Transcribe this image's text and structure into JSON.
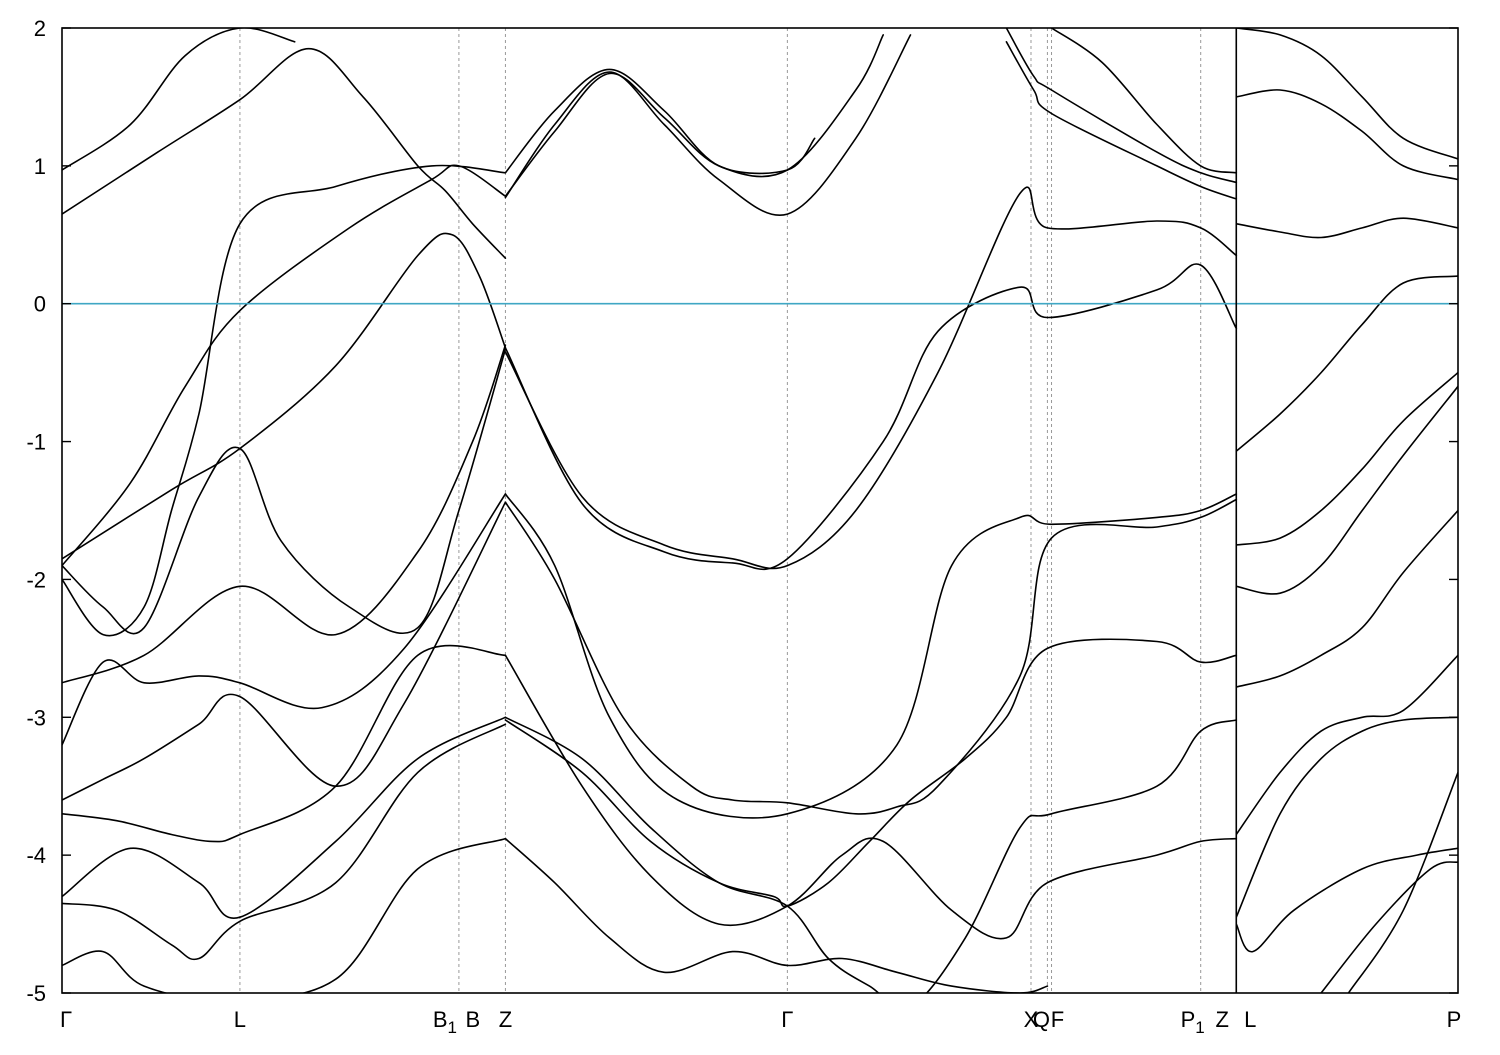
{
  "chart_data": {
    "type": "line",
    "title": "",
    "xlabel": "",
    "ylabel": "",
    "ylim": [
      -5,
      2
    ],
    "yticks": [
      -5,
      -4,
      -3,
      -2,
      -1,
      0,
      1,
      2
    ],
    "grid": "vertical dashed lines at high-symmetry points",
    "legend": "none",
    "colors": {
      "bands": "#000000",
      "fermi_level": "#3fa7c4",
      "symmetry_lines": "#999999"
    },
    "path_end": 10.2,
    "segment_break_at": 8.58,
    "fermi_level": 0,
    "high_symmetry_points": [
      {
        "label": "Γ",
        "sub": "",
        "k": 0
      },
      {
        "label": "L",
        "sub": "",
        "k": 1.3
      },
      {
        "label": "B",
        "sub": "1",
        "k": 2.9
      },
      {
        "label": "B",
        "sub": "",
        "k": 2.9
      },
      {
        "label": "Z",
        "sub": "",
        "k": 3.24
      },
      {
        "label": "Γ",
        "sub": "",
        "k": 5.3
      },
      {
        "label": "X",
        "sub": "",
        "k": 7.08
      },
      {
        "label": "Q",
        "sub": "",
        "k": 7.2
      },
      {
        "label": "F",
        "sub": "",
        "k": 7.23
      },
      {
        "label": "P",
        "sub": "1",
        "k": 8.32
      },
      {
        "label": "Z",
        "sub": "",
        "k": 8.58
      },
      {
        "label": "L",
        "sub": "",
        "k": 8.58
      },
      {
        "label": "P",
        "sub": "",
        "k": 10.2
      }
    ],
    "series": [
      {
        "x": [
          0,
          0.8,
          1.3,
          2.0,
          2.6,
          2.85,
          3.05,
          3.24
        ],
        "y": [
          -1.85,
          -1.35,
          -1.05,
          -0.45,
          0.35,
          0.5,
          0.2,
          -0.32
        ]
      },
      {
        "x": [
          0,
          0.5,
          0.9,
          1.3,
          2.1,
          2.7,
          2.9,
          3.24
        ],
        "y": [
          -1.9,
          -1.3,
          -0.6,
          -0.05,
          0.55,
          0.9,
          1.0,
          0.78
        ]
      },
      {
        "x": [
          0,
          0.3,
          0.6,
          0.8,
          1.0,
          1.3,
          2.0,
          2.7,
          3.24
        ],
        "y": [
          -2.0,
          -2.4,
          -2.2,
          -1.5,
          -0.8,
          0.58,
          0.85,
          1.0,
          0.95
        ]
      },
      {
        "x": [
          0,
          0.7,
          1.3,
          1.8,
          2.2,
          2.6,
          2.8,
          3.0,
          3.24
        ],
        "y": [
          0.65,
          1.1,
          1.48,
          1.85,
          1.5,
          1.0,
          0.82,
          0.58,
          0.33
        ]
      },
      {
        "x": [
          0,
          0.5,
          0.9,
          1.3,
          1.7
        ],
        "y": [
          0.97,
          1.3,
          1.8,
          2.0,
          1.9
        ]
      },
      {
        "x": [
          0,
          0.3,
          0.6,
          1.0,
          1.3,
          1.6,
          2.1,
          2.6,
          2.9,
          3.24
        ],
        "y": [
          -1.9,
          -2.2,
          -2.35,
          -1.4,
          -1.05,
          -1.72,
          -2.2,
          -2.35,
          -1.5,
          -0.33
        ]
      },
      {
        "x": [
          0,
          0.6,
          1.3,
          2.0,
          2.6,
          3.0,
          3.24
        ],
        "y": [
          -2.75,
          -2.55,
          -2.05,
          -2.4,
          -1.8,
          -1.0,
          -0.3
        ]
      },
      {
        "x": [
          0,
          0.3,
          0.6,
          1.0,
          1.3,
          1.9,
          2.5,
          3.24
        ],
        "y": [
          -3.2,
          -2.6,
          -2.75,
          -2.7,
          -2.75,
          -2.93,
          -2.5,
          -1.38
        ]
      },
      {
        "x": [
          0,
          0.3,
          0.6,
          1.0,
          1.3,
          2.0,
          2.5,
          3.24
        ],
        "y": [
          -3.6,
          -3.45,
          -3.3,
          -3.05,
          -2.85,
          -3.5,
          -2.9,
          -1.44
        ]
      },
      {
        "x": [
          0,
          0.4,
          0.8,
          1.1,
          1.3,
          2.0,
          2.6,
          3.24
        ],
        "y": [
          -3.7,
          -3.75,
          -3.85,
          -3.9,
          -3.85,
          -3.5,
          -2.55,
          -2.55
        ]
      },
      {
        "x": [
          0,
          0.5,
          1.0,
          1.3,
          2.0,
          2.6,
          3.24
        ],
        "y": [
          -4.3,
          -3.95,
          -4.2,
          -4.45,
          -3.9,
          -3.3,
          -3.0
        ]
      },
      {
        "x": [
          0,
          0.4,
          0.8,
          1.0,
          1.3,
          2.0,
          2.6,
          3.24
        ],
        "y": [
          -4.35,
          -4.4,
          -4.65,
          -4.75,
          -4.48,
          -4.2,
          -3.4,
          -3.05
        ]
      },
      {
        "x": [
          0,
          0.3,
          0.6,
          1.2,
          2.0,
          2.6,
          3.24
        ],
        "y": [
          -4.8,
          -4.7,
          -4.95,
          -5.05,
          -4.9,
          -4.1,
          -3.88
        ]
      },
      {
        "x": [
          3.24,
          3.8,
          4.4,
          4.9,
          5.3,
          6.0,
          6.4,
          7.0,
          7.2,
          8.0,
          8.32,
          8.58
        ],
        "y": [
          -0.32,
          -1.45,
          -1.8,
          -1.88,
          -1.85,
          -1.0,
          -0.2,
          0.12,
          -0.1,
          0.1,
          0.28,
          -0.18
        ]
      },
      {
        "x": [
          3.24,
          3.8,
          4.4,
          4.9,
          5.3,
          5.8,
          6.4,
          7.0,
          7.2,
          8.0,
          8.32,
          8.58
        ],
        "y": [
          -0.35,
          -1.4,
          -1.75,
          -1.85,
          -1.9,
          -1.5,
          -0.5,
          0.8,
          0.55,
          0.6,
          0.55,
          0.35
        ]
      },
      {
        "x": [
          3.24,
          3.6,
          4.0,
          4.5,
          5.3,
          6.1,
          6.5,
          7.0,
          7.23,
          8.0,
          8.32,
          8.58
        ],
        "y": [
          -1.38,
          -1.9,
          -3.0,
          -3.6,
          -3.7,
          -3.2,
          -1.9,
          -1.55,
          -1.6,
          -1.55,
          -1.5,
          -1.38
        ]
      },
      {
        "x": [
          3.24,
          3.6,
          4.1,
          4.6,
          4.9,
          5.3,
          5.8,
          6.1,
          6.4,
          7.0,
          7.23,
          8.0,
          8.32,
          8.58
        ],
        "y": [
          -1.44,
          -2.0,
          -3.0,
          -3.5,
          -3.6,
          -3.62,
          -3.7,
          -3.65,
          -3.5,
          -2.7,
          -1.7,
          -1.62,
          -1.55,
          -1.42
        ]
      },
      {
        "x": [
          3.24,
          3.8,
          4.3,
          4.8,
          5.3,
          5.7,
          6.0,
          6.5,
          6.9,
          7.2,
          8.0,
          8.32,
          8.58
        ],
        "y": [
          -2.55,
          -3.5,
          -4.15,
          -4.5,
          -4.37,
          -4.0,
          -3.9,
          -4.4,
          -4.6,
          -4.2,
          -4.0,
          -3.9,
          -3.88
        ]
      },
      {
        "x": [
          3.24,
          3.8,
          4.3,
          4.8,
          5.3,
          5.6,
          5.9,
          6.2,
          6.6,
          7.0,
          7.23,
          8.0,
          8.32,
          8.58
        ],
        "y": [
          -3.0,
          -3.3,
          -3.8,
          -4.2,
          -4.37,
          -4.75,
          -4.95,
          -5.1,
          -4.6,
          -3.8,
          -3.7,
          -3.5,
          -3.1,
          -3.02
        ]
      },
      {
        "x": [
          3.24,
          3.8,
          4.3,
          4.8,
          5.2,
          5.3,
          5.6,
          5.9,
          6.2,
          6.6,
          6.9,
          7.2,
          8.0,
          8.32,
          8.58
        ],
        "y": [
          -3.02,
          -3.4,
          -3.9,
          -4.2,
          -4.3,
          -4.37,
          -4.2,
          -3.9,
          -3.6,
          -3.3,
          -3.0,
          -2.5,
          -2.45,
          -2.6,
          -2.55
        ]
      },
      {
        "x": [
          3.24,
          3.6,
          4.0,
          4.4,
          4.9,
          5.3,
          5.7,
          6.1,
          6.5,
          7.0,
          7.2
        ],
        "y": [
          -3.88,
          -4.2,
          -4.6,
          -4.85,
          -4.7,
          -4.8,
          -4.75,
          -4.85,
          -4.95,
          -5.0,
          -4.95
        ]
      },
      {
        "x": [
          3.24,
          3.6,
          4.0,
          4.4,
          4.8,
          5.3,
          5.5
        ],
        "y": [
          0.95,
          1.4,
          1.7,
          1.4,
          1.0,
          0.97,
          1.2
        ]
      },
      {
        "x": [
          3.24,
          3.6,
          4.0,
          4.4,
          4.8,
          5.3,
          5.8,
          6.2
        ],
        "y": [
          0.77,
          1.3,
          1.68,
          1.3,
          0.9,
          0.65,
          1.2,
          1.95
        ]
      },
      {
        "x": [
          3.24,
          3.6,
          4.0,
          4.4,
          4.8,
          5.3,
          5.8,
          6.0
        ],
        "y": [
          0.78,
          1.25,
          1.67,
          1.35,
          1.0,
          0.97,
          1.55,
          1.95
        ]
      },
      {
        "x": [
          6.9,
          7.1,
          7.23,
          8.0,
          8.32,
          8.58
        ],
        "y": [
          2.0,
          1.65,
          1.55,
          1.1,
          0.95,
          0.88
        ]
      },
      {
        "x": [
          6.9,
          7.1,
          7.23,
          8.0,
          8.32,
          8.58
        ],
        "y": [
          1.9,
          1.55,
          1.38,
          1.0,
          0.85,
          0.76
        ]
      },
      {
        "x": [
          7.23,
          7.6,
          8.0,
          8.32,
          8.58
        ],
        "y": [
          2.0,
          1.75,
          1.3,
          1.0,
          0.95
        ]
      },
      {
        "x": [
          8.58,
          8.9,
          9.2,
          9.5,
          9.8,
          10.2
        ],
        "y": [
          0.58,
          0.52,
          0.48,
          0.55,
          0.62,
          0.55
        ]
      },
      {
        "x": [
          8.58,
          8.9,
          9.2,
          9.5,
          9.8,
          10.2
        ],
        "y": [
          1.5,
          1.55,
          1.45,
          1.25,
          1.0,
          0.9
        ]
      },
      {
        "x": [
          8.58,
          8.9,
          9.2,
          9.5,
          9.8,
          10.2
        ],
        "y": [
          2.0,
          1.95,
          1.8,
          1.5,
          1.2,
          1.05
        ]
      },
      {
        "x": [
          8.58,
          8.9,
          9.2,
          9.5,
          9.8,
          10.2
        ],
        "y": [
          -1.07,
          -0.8,
          -0.5,
          -0.15,
          0.15,
          0.2
        ]
      },
      {
        "x": [
          8.58,
          8.9,
          9.2,
          9.5,
          9.8,
          10.2
        ],
        "y": [
          -1.75,
          -1.7,
          -1.5,
          -1.2,
          -0.85,
          -0.5
        ]
      },
      {
        "x": [
          8.58,
          8.9,
          9.2,
          9.5,
          9.8,
          10.2
        ],
        "y": [
          -2.05,
          -2.1,
          -1.9,
          -1.5,
          -1.1,
          -0.6
        ]
      },
      {
        "x": [
          8.58,
          8.9,
          9.2,
          9.5,
          9.8,
          10.2
        ],
        "y": [
          -2.78,
          -2.7,
          -2.55,
          -2.35,
          -1.95,
          -1.5
        ]
      },
      {
        "x": [
          8.58,
          8.9,
          9.2,
          9.5,
          9.8,
          10.2
        ],
        "y": [
          -3.85,
          -3.4,
          -3.1,
          -3.0,
          -2.95,
          -2.55
        ]
      },
      {
        "x": [
          8.58,
          8.9,
          9.2,
          9.5,
          9.8,
          10.2
        ],
        "y": [
          -4.45,
          -3.7,
          -3.3,
          -3.1,
          -3.02,
          -3.0
        ]
      },
      {
        "x": [
          8.58,
          8.7,
          9.0,
          9.5,
          9.9,
          10.2
        ],
        "y": [
          -4.5,
          -4.7,
          -4.4,
          -4.1,
          -4.0,
          -3.95
        ]
      },
      {
        "x": [
          9.2,
          9.6,
          10.0,
          10.2
        ],
        "y": [
          -5.0,
          -4.5,
          -4.1,
          -4.05
        ]
      },
      {
        "x": [
          9.4,
          9.8,
          10.2
        ],
        "y": [
          -5.0,
          -4.4,
          -3.4
        ]
      }
    ]
  }
}
